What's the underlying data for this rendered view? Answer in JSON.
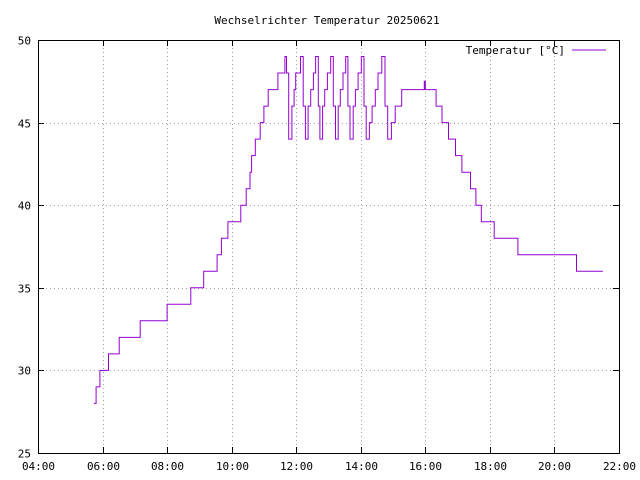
{
  "chart_data": {
    "type": "line",
    "title": "Wechselrichter Temperatur 20250621",
    "xlabel": "",
    "ylabel": "",
    "x_ticks": [
      "04:00",
      "06:00",
      "08:00",
      "10:00",
      "12:00",
      "14:00",
      "16:00",
      "18:00",
      "20:00",
      "22:00"
    ],
    "y_ticks": [
      "25",
      "30",
      "35",
      "40",
      "45",
      "50"
    ],
    "xlim": [
      "04:00",
      "22:00"
    ],
    "ylim": [
      25,
      50
    ],
    "grid": true,
    "legend_position": "top-right",
    "series_color": "#9400d3",
    "series": [
      {
        "name": "Temperatur [°C]",
        "points": [
          [
            "05:44",
            28
          ],
          [
            "05:48",
            29
          ],
          [
            "05:55",
            30
          ],
          [
            "06:11",
            31
          ],
          [
            "06:31",
            32
          ],
          [
            "07:10",
            33
          ],
          [
            "08:00",
            34
          ],
          [
            "08:44",
            35
          ],
          [
            "09:08",
            36
          ],
          [
            "09:33",
            37
          ],
          [
            "09:41",
            38
          ],
          [
            "09:53",
            39
          ],
          [
            "10:17",
            40
          ],
          [
            "10:27",
            41
          ],
          [
            "10:34",
            42
          ],
          [
            "10:37",
            43
          ],
          [
            "10:44",
            44
          ],
          [
            "10:53",
            45
          ],
          [
            "11:00",
            46
          ],
          [
            "11:08",
            47
          ],
          [
            "11:26",
            48
          ],
          [
            "11:39",
            49
          ],
          [
            "11:42",
            48
          ],
          [
            "11:46",
            44
          ],
          [
            "11:52",
            46
          ],
          [
            "11:56",
            47
          ],
          [
            "11:59",
            48
          ],
          [
            "12:08",
            49
          ],
          [
            "12:13",
            46
          ],
          [
            "12:17",
            44
          ],
          [
            "12:22",
            46
          ],
          [
            "12:27",
            47
          ],
          [
            "12:32",
            48
          ],
          [
            "12:36",
            49
          ],
          [
            "12:41",
            46
          ],
          [
            "12:44",
            44
          ],
          [
            "12:49",
            46
          ],
          [
            "12:53",
            47
          ],
          [
            "12:58",
            48
          ],
          [
            "13:04",
            49
          ],
          [
            "13:09",
            46
          ],
          [
            "13:13",
            44
          ],
          [
            "13:18",
            46
          ],
          [
            "13:22",
            47
          ],
          [
            "13:27",
            48
          ],
          [
            "13:32",
            49
          ],
          [
            "13:36",
            46
          ],
          [
            "13:40",
            44
          ],
          [
            "13:46",
            46
          ],
          [
            "13:50",
            47
          ],
          [
            "13:55",
            48
          ],
          [
            "14:01",
            49
          ],
          [
            "14:06",
            46
          ],
          [
            "14:10",
            44
          ],
          [
            "14:16",
            45
          ],
          [
            "14:21",
            46
          ],
          [
            "14:27",
            47
          ],
          [
            "14:32",
            48
          ],
          [
            "14:39",
            49
          ],
          [
            "14:45",
            46
          ],
          [
            "14:50",
            44
          ],
          [
            "14:57",
            45
          ],
          [
            "15:04",
            46
          ],
          [
            "15:16",
            47
          ],
          [
            "15:58",
            47.5
          ],
          [
            "16:00",
            47
          ],
          [
            "16:20",
            46
          ],
          [
            "16:31",
            45
          ],
          [
            "16:43",
            44
          ],
          [
            "16:56",
            43
          ],
          [
            "17:08",
            42
          ],
          [
            "17:24",
            41
          ],
          [
            "17:34",
            40
          ],
          [
            "17:44",
            39
          ],
          [
            "18:08",
            38
          ],
          [
            "18:52",
            37
          ],
          [
            "19:26",
            37
          ],
          [
            "20:41",
            36
          ],
          [
            "21:30",
            36
          ]
        ]
      }
    ]
  }
}
